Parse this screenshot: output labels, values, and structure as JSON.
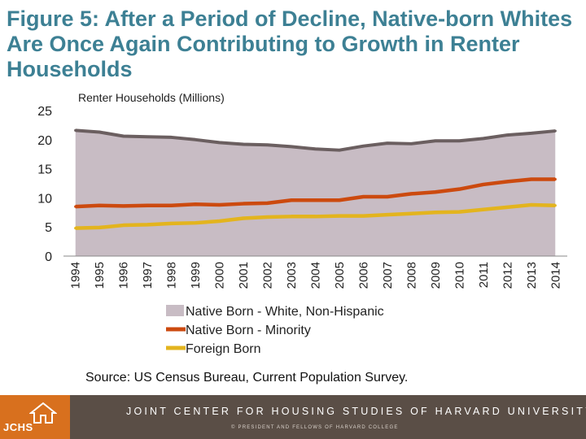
{
  "title": "Figure 5: After a Period of Decline, Native-born Whites Are Once Again Contributing to Growth in Renter Households",
  "chart_data": {
    "type": "area",
    "ylabel": "Renter Households (Millions)",
    "ylim": [
      0,
      25
    ],
    "yticks": [
      0,
      5,
      10,
      15,
      20,
      25
    ],
    "categories": [
      "1994",
      "1995",
      "1996",
      "1997",
      "1998",
      "1999",
      "2000",
      "2001",
      "2002",
      "2003",
      "2004",
      "2005",
      "2006",
      "2007",
      "2008",
      "2009",
      "2010",
      "2011",
      "2012",
      "2013",
      "2014"
    ],
    "series": [
      {
        "name": "Native Born - White, Non-Hispanic",
        "kind": "area",
        "fill": "#c8bcc4",
        "stroke": "#6b5f60",
        "values": [
          21.6,
          21.3,
          20.6,
          20.5,
          20.4,
          20.0,
          19.5,
          19.2,
          19.1,
          18.8,
          18.4,
          18.2,
          18.9,
          19.4,
          19.3,
          19.8,
          19.8,
          20.2,
          20.8,
          21.1,
          21.5
        ]
      },
      {
        "name": "Native Born - Minority",
        "kind": "line",
        "color": "#cc4a0f",
        "values": [
          8.5,
          8.7,
          8.6,
          8.7,
          8.7,
          8.9,
          8.8,
          9.0,
          9.1,
          9.6,
          9.6,
          9.6,
          10.2,
          10.2,
          10.7,
          11.0,
          11.5,
          12.3,
          12.8,
          13.2,
          13.2
        ]
      },
      {
        "name": "Foreign Born",
        "kind": "line",
        "color": "#e3b41e",
        "values": [
          4.8,
          4.9,
          5.3,
          5.4,
          5.6,
          5.7,
          6.0,
          6.5,
          6.7,
          6.8,
          6.8,
          6.9,
          6.9,
          7.1,
          7.3,
          7.5,
          7.6,
          8.0,
          8.4,
          8.8,
          8.7
        ]
      }
    ],
    "legend_position": "bottom"
  },
  "source": "Source: US Census Bureau, Current Population Survey.",
  "footer": {
    "logo_text": "JCHS",
    "org_name": "JOINT CENTER FOR HOUSING STUDIES OF HARVARD UNIVERSITY",
    "copyright": "© PRESIDENT AND FELLOWS OF HARVARD COLLEGE"
  }
}
